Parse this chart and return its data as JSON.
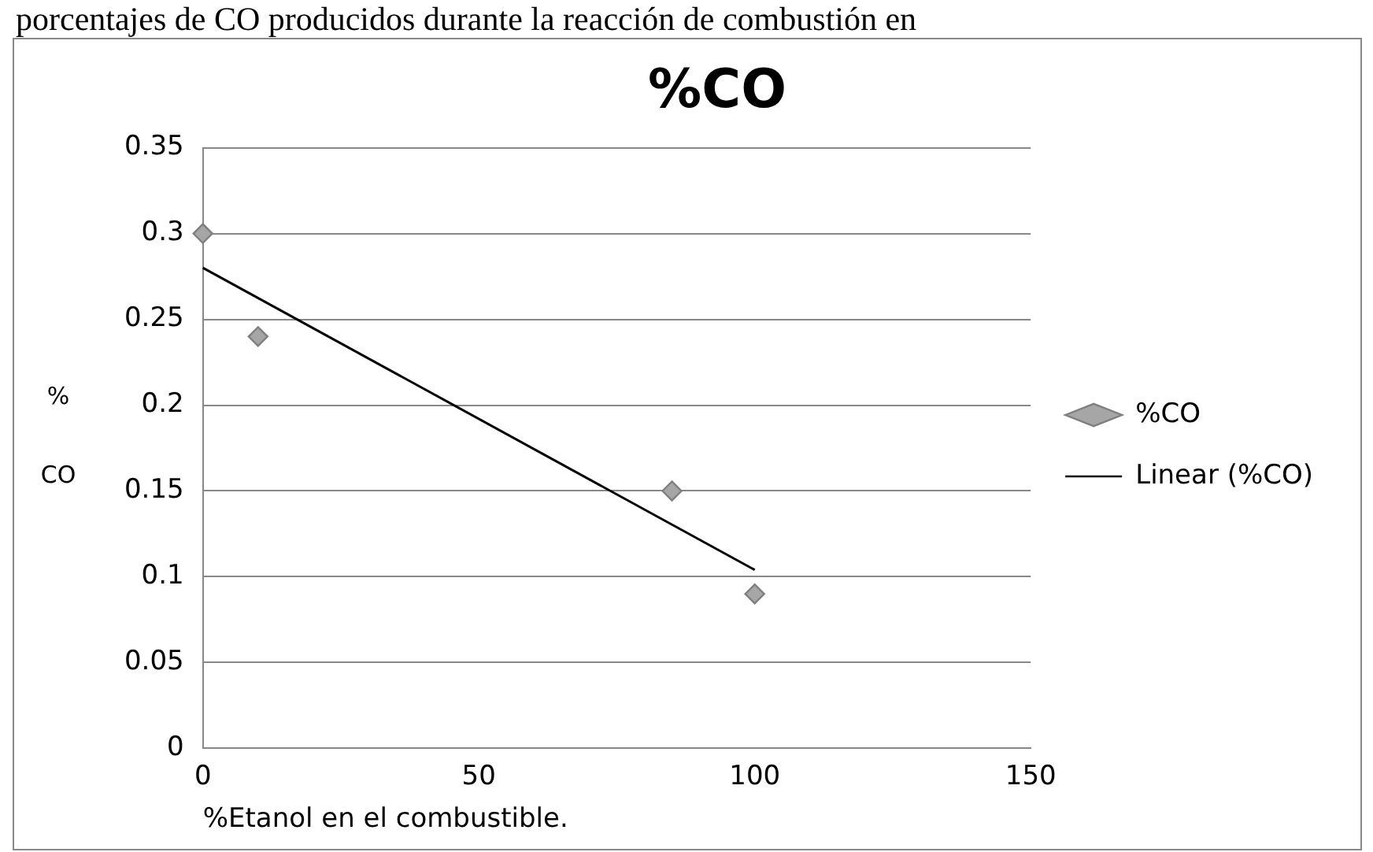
{
  "chart_data": {
    "type": "scatter",
    "title": "%CO",
    "xlabel": "%Etanol en el combustible.",
    "ylabel": "% CO",
    "annotations": [
      "porcentajes de CO producidos durante la reacción de combustión en"
    ],
    "x": [
      0,
      10,
      85,
      100
    ],
    "series": [
      {
        "name": "%CO",
        "type": "scatter",
        "color": "#a6a6a6",
        "marker": "diamond",
        "values": [
          0.3,
          0.24,
          0.15,
          0.09
        ]
      },
      {
        "name": "Linear (%CO)",
        "type": "line",
        "color": "#000000",
        "marker": "none",
        "x": [
          0,
          100
        ],
        "values": [
          0.28,
          0.104
        ]
      }
    ],
    "xlim": [
      0,
      150
    ],
    "xticks": [
      0,
      50,
      100,
      150
    ],
    "ylim": [
      0,
      0.35
    ],
    "yticks": [
      0,
      0.05,
      0.1,
      0.15,
      0.2,
      0.25,
      0.3,
      0.35
    ],
    "grid": "y",
    "legend": "right"
  }
}
